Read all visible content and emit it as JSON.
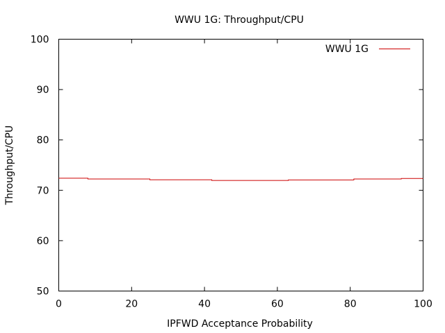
{
  "chart_data": {
    "type": "line",
    "title": "WWU 1G: Throughput/CPU",
    "xlabel": "IPFWD Acceptance Probability",
    "ylabel": "Throughput/CPU",
    "xlim": [
      0,
      100
    ],
    "ylim": [
      50,
      100
    ],
    "xticks": [
      0,
      20,
      40,
      60,
      80,
      100
    ],
    "yticks": [
      50,
      60,
      70,
      80,
      90,
      100
    ],
    "grid": false,
    "legend_position": "top-right",
    "series": [
      {
        "name": "WWU 1G",
        "color": "#cc0000",
        "step": true,
        "x": [
          0,
          8,
          25,
          42,
          63,
          81,
          94,
          100
        ],
        "y": [
          72.4,
          72.25,
          72.1,
          71.95,
          72.05,
          72.25,
          72.35,
          72.35
        ]
      }
    ]
  }
}
